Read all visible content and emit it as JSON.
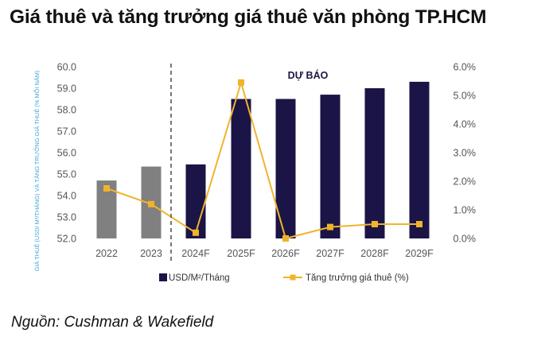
{
  "title": "Giá thuê và tăng trưởng giá thuê văn phòng TP.HCM",
  "source": "Nguồn: Cushman & Wakefield",
  "colors": {
    "bar_dark": "#1b1446",
    "bar_grey": "#808080",
    "line": "#f0b42b",
    "ylabel": "#3fa9d9",
    "divider": "#555555"
  },
  "chart_data": {
    "type": "bar",
    "categories": [
      "2022",
      "2023",
      "2024F",
      "2025F",
      "2026F",
      "2027F",
      "2028F",
      "2029F"
    ],
    "forecast_label": "DỰ BÁO",
    "ylabel": "GIÁ THUÊ (USD/ M²/THÁNG) VÀ TĂNG TRƯỞNG GIÁ THUÊ (% MỖI NĂM)",
    "y_left": {
      "min": 52.0,
      "max": 60.0,
      "ticks": [
        "52.0",
        "53.0",
        "54.0",
        "55.0",
        "56.0",
        "57.0",
        "58.0",
        "59.0",
        "60.0"
      ]
    },
    "y_right": {
      "min": 0,
      "max": 6,
      "ticks": [
        "0.0%",
        "1.0%",
        "2.0%",
        "3.0%",
        "4.0%",
        "5.0%",
        "6.0%"
      ]
    },
    "grid": false,
    "legend_position": "bottom",
    "series": [
      {
        "name": "USD/M²/Tháng",
        "kind": "bar",
        "axis": "left",
        "values": [
          54.7,
          55.35,
          55.45,
          58.5,
          58.5,
          58.7,
          59.0,
          59.3
        ]
      },
      {
        "name": "Tăng trưởng giá thuê (%)",
        "kind": "line",
        "axis": "right",
        "values": [
          1.75,
          1.2,
          0.2,
          5.45,
          0.0,
          0.4,
          0.5,
          0.5
        ]
      }
    ]
  }
}
